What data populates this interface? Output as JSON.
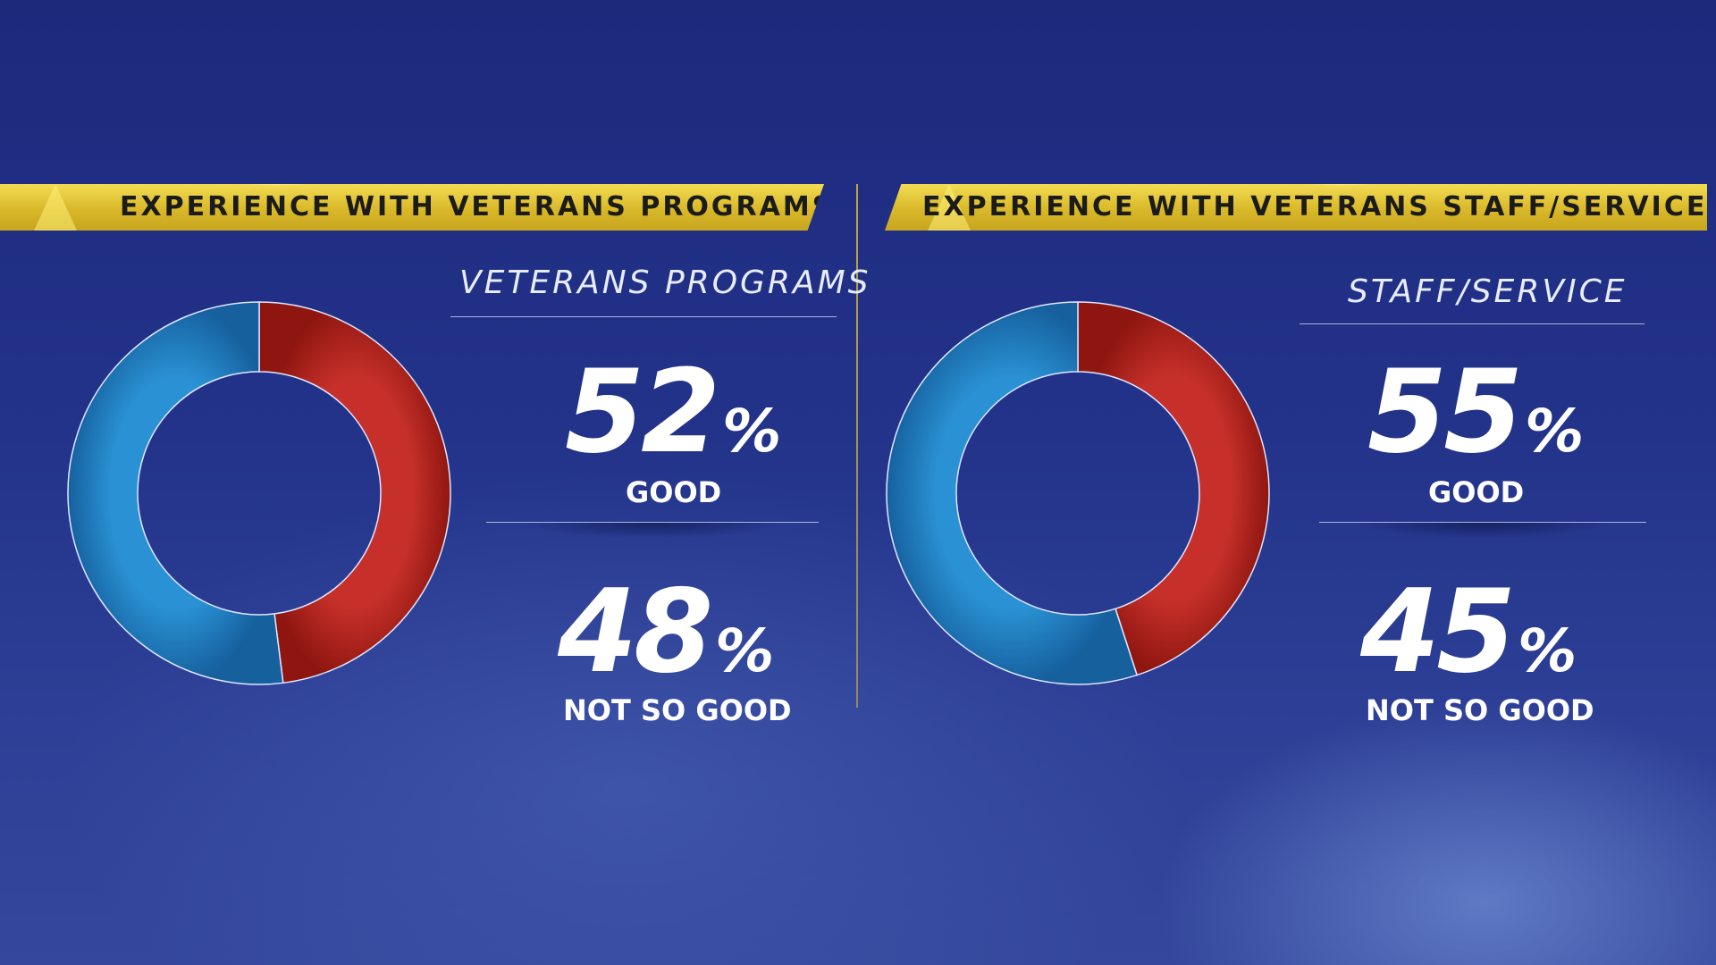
{
  "panels": [
    {
      "banner": "EXPERIENCE WITH VETERANS PROGRAMS",
      "subtitle": "VETERANS PROGRAMS",
      "good_value": "52",
      "good_label": "GOOD",
      "notgood_value": "48",
      "notgood_label": "NOT SO GOOD",
      "percent_sign": "%"
    },
    {
      "banner": "EXPERIENCE WITH VETERANS STAFF/SERVICE",
      "subtitle": "STAFF/SERVICE",
      "good_value": "55",
      "good_label": "GOOD",
      "notgood_value": "45",
      "notgood_label": "NOT SO GOOD",
      "percent_sign": "%"
    }
  ],
  "colors": {
    "not_so_good": "#b8261c",
    "good": "#1f82c8",
    "banner": "#e0c030"
  },
  "chart_data": [
    {
      "type": "pie",
      "title": "EXPERIENCE WITH VETERANS PROGRAMS",
      "categories": [
        "NOT SO GOOD",
        "GOOD"
      ],
      "values": [
        48,
        52
      ],
      "colors": [
        "#b8261c",
        "#1f82c8"
      ],
      "style": "donut",
      "start": "top, clockwise"
    },
    {
      "type": "pie",
      "title": "EXPERIENCE WITH VETERANS STAFF/SERVICE",
      "categories": [
        "NOT SO GOOD",
        "GOOD"
      ],
      "values": [
        45,
        55
      ],
      "colors": [
        "#b8261c",
        "#1f82c8"
      ],
      "style": "donut",
      "start": "top, clockwise"
    }
  ]
}
